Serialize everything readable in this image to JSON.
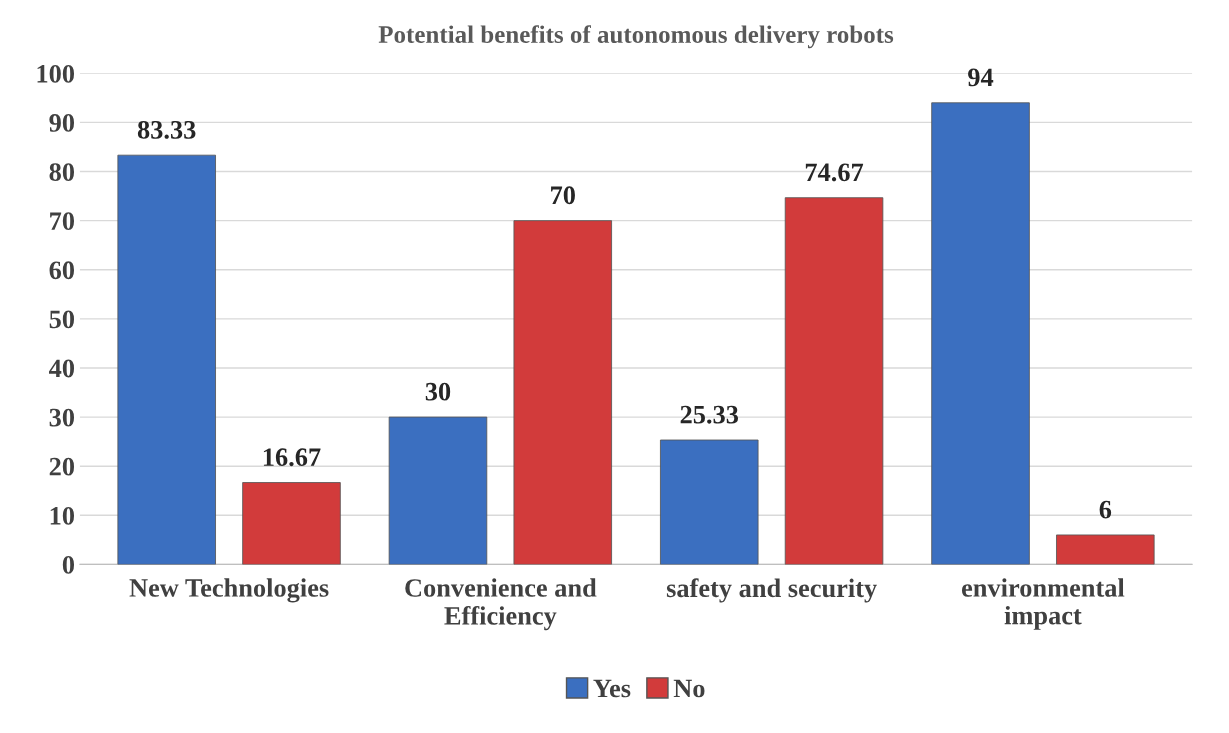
{
  "chart_data": {
    "type": "bar",
    "title": "Potential benefits of autonomous delivery robots",
    "categories": [
      "New Technologies",
      "Convenience and\nEfficiency",
      "safety and security",
      "environmental\nimpact"
    ],
    "series": [
      {
        "name": "Yes",
        "color": "#3b6fc0",
        "values": [
          83.33,
          30,
          25.33,
          94
        ]
      },
      {
        "name": "No",
        "color": "#d23b3b",
        "values": [
          16.67,
          70,
          74.67,
          6
        ]
      }
    ],
    "ylim": [
      0,
      100
    ],
    "yticks": [
      0,
      10,
      20,
      30,
      40,
      50,
      60,
      70,
      80,
      90,
      100
    ],
    "grid": "y",
    "legend": "bottom",
    "data_labels": true
  }
}
